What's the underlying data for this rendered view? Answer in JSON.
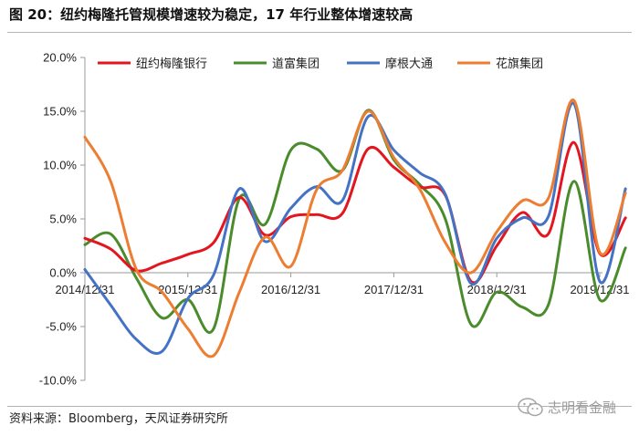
{
  "header": {
    "title": "图 20：纽约梅隆托管规模增速较为稳定，17 年行业整体增速较高"
  },
  "footer": {
    "source": "资料来源：Bloomberg，天风证券研究所",
    "watermark": "志明看金融"
  },
  "chart_data": {
    "type": "line",
    "ylim": [
      -10,
      20
    ],
    "y_ticks": [
      "20.0%",
      "15.0%",
      "10.0%",
      "5.0%",
      "0.0%",
      "-5.0%",
      "-10.0%"
    ],
    "x_ticks": [
      "2014/12/31",
      "2015/12/31",
      "2016/12/31",
      "2017/12/31",
      "2018/12/31",
      "2019/12/31"
    ],
    "xlim": [
      0,
      20
    ],
    "grid": false,
    "legend_position": "top",
    "series": [
      {
        "name": "纽约梅隆银行",
        "color": "#e3161f",
        "points": [
          [
            0,
            3.2
          ],
          [
            1,
            2.2
          ],
          [
            2,
            0.2
          ],
          [
            3,
            0.9
          ],
          [
            4,
            1.7
          ],
          [
            5,
            2.8
          ],
          [
            6,
            7.0
          ],
          [
            7,
            3.5
          ],
          [
            8,
            5.2
          ],
          [
            9,
            5.4
          ],
          [
            10,
            5.5
          ],
          [
            11,
            11.5
          ],
          [
            12,
            9.8
          ],
          [
            13,
            8.0
          ],
          [
            14,
            7.2
          ],
          [
            15,
            -0.8
          ],
          [
            16,
            2.5
          ],
          [
            17,
            5.6
          ],
          [
            18,
            3.6
          ],
          [
            19,
            12.1
          ],
          [
            20,
            1.8
          ],
          [
            21,
            5.1
          ]
        ]
      },
      {
        "name": "道富集团",
        "color": "#4a8b2c",
        "points": [
          [
            0,
            2.6
          ],
          [
            1,
            3.6
          ],
          [
            2,
            -0.5
          ],
          [
            3,
            -4.2
          ],
          [
            4,
            -2.5
          ],
          [
            5,
            -5.2
          ],
          [
            6,
            6.9
          ],
          [
            7,
            4.5
          ],
          [
            8,
            11.4
          ],
          [
            9,
            11.5
          ],
          [
            10,
            9.5
          ],
          [
            11,
            15.1
          ],
          [
            12,
            10.5
          ],
          [
            13,
            8.2
          ],
          [
            14,
            5.0
          ],
          [
            15,
            -4.8
          ],
          [
            16,
            -1.8
          ],
          [
            17,
            -3.2
          ],
          [
            18,
            -3.0
          ],
          [
            19,
            8.5
          ],
          [
            20,
            -2.5
          ],
          [
            21,
            2.3
          ]
        ]
      },
      {
        "name": "摩根大通",
        "color": "#4472c4",
        "points": [
          [
            0,
            0.3
          ],
          [
            1,
            -3.0
          ],
          [
            2,
            -6.2
          ],
          [
            3,
            -7.3
          ],
          [
            4,
            -2.4
          ],
          [
            5,
            -0.2
          ],
          [
            6,
            7.8
          ],
          [
            7,
            2.9
          ],
          [
            8,
            6.0
          ],
          [
            9,
            8.0
          ],
          [
            10,
            6.7
          ],
          [
            11,
            14.5
          ],
          [
            12,
            11.4
          ],
          [
            13,
            9.3
          ],
          [
            14,
            7.3
          ],
          [
            15,
            -1.0
          ],
          [
            16,
            3.2
          ],
          [
            17,
            5.1
          ],
          [
            18,
            5.2
          ],
          [
            19,
            15.7
          ],
          [
            20,
            -0.8
          ],
          [
            21,
            7.8
          ]
        ]
      },
      {
        "name": "花旗集团",
        "color": "#ed7d31",
        "points": [
          [
            0,
            12.6
          ],
          [
            1,
            8.5
          ],
          [
            2,
            0.3
          ],
          [
            3,
            -1.8
          ],
          [
            4,
            -5.2
          ],
          [
            5,
            -7.7
          ],
          [
            6,
            -1.8
          ],
          [
            7,
            3.3
          ],
          [
            8,
            0.6
          ],
          [
            9,
            7.7
          ],
          [
            10,
            9.5
          ],
          [
            11,
            15.0
          ],
          [
            12,
            10.7
          ],
          [
            13,
            7.8
          ],
          [
            14,
            2.8
          ],
          [
            15,
            0.0
          ],
          [
            16,
            3.8
          ],
          [
            17,
            6.7
          ],
          [
            18,
            6.9
          ],
          [
            19,
            16.0
          ],
          [
            20,
            1.9
          ],
          [
            21,
            7.4
          ]
        ]
      }
    ]
  }
}
